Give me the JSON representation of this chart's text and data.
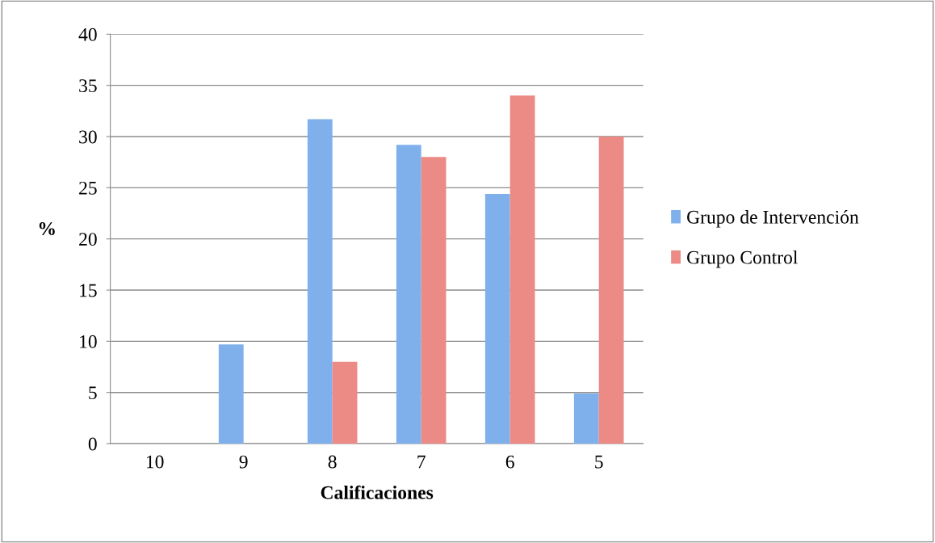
{
  "chart_data": {
    "type": "bar",
    "xlabel": "Calificaciones",
    "ylabel": "%",
    "categories": [
      "10",
      "9",
      "8",
      "7",
      "6",
      "5"
    ],
    "series": [
      {
        "name": "Grupo de Intervención",
        "color": "#7fb0ec",
        "values": [
          0,
          9.7,
          31.7,
          29.2,
          24.4,
          4.9
        ]
      },
      {
        "name": "Grupo Control",
        "color": "#ec8a85",
        "values": [
          0,
          0,
          8.0,
          28.0,
          34.0,
          30.0
        ]
      }
    ],
    "ylim": [
      0,
      40
    ],
    "yticks": [
      0,
      5,
      10,
      15,
      20,
      25,
      30,
      35,
      40
    ],
    "grid": "y",
    "legend": "right"
  }
}
